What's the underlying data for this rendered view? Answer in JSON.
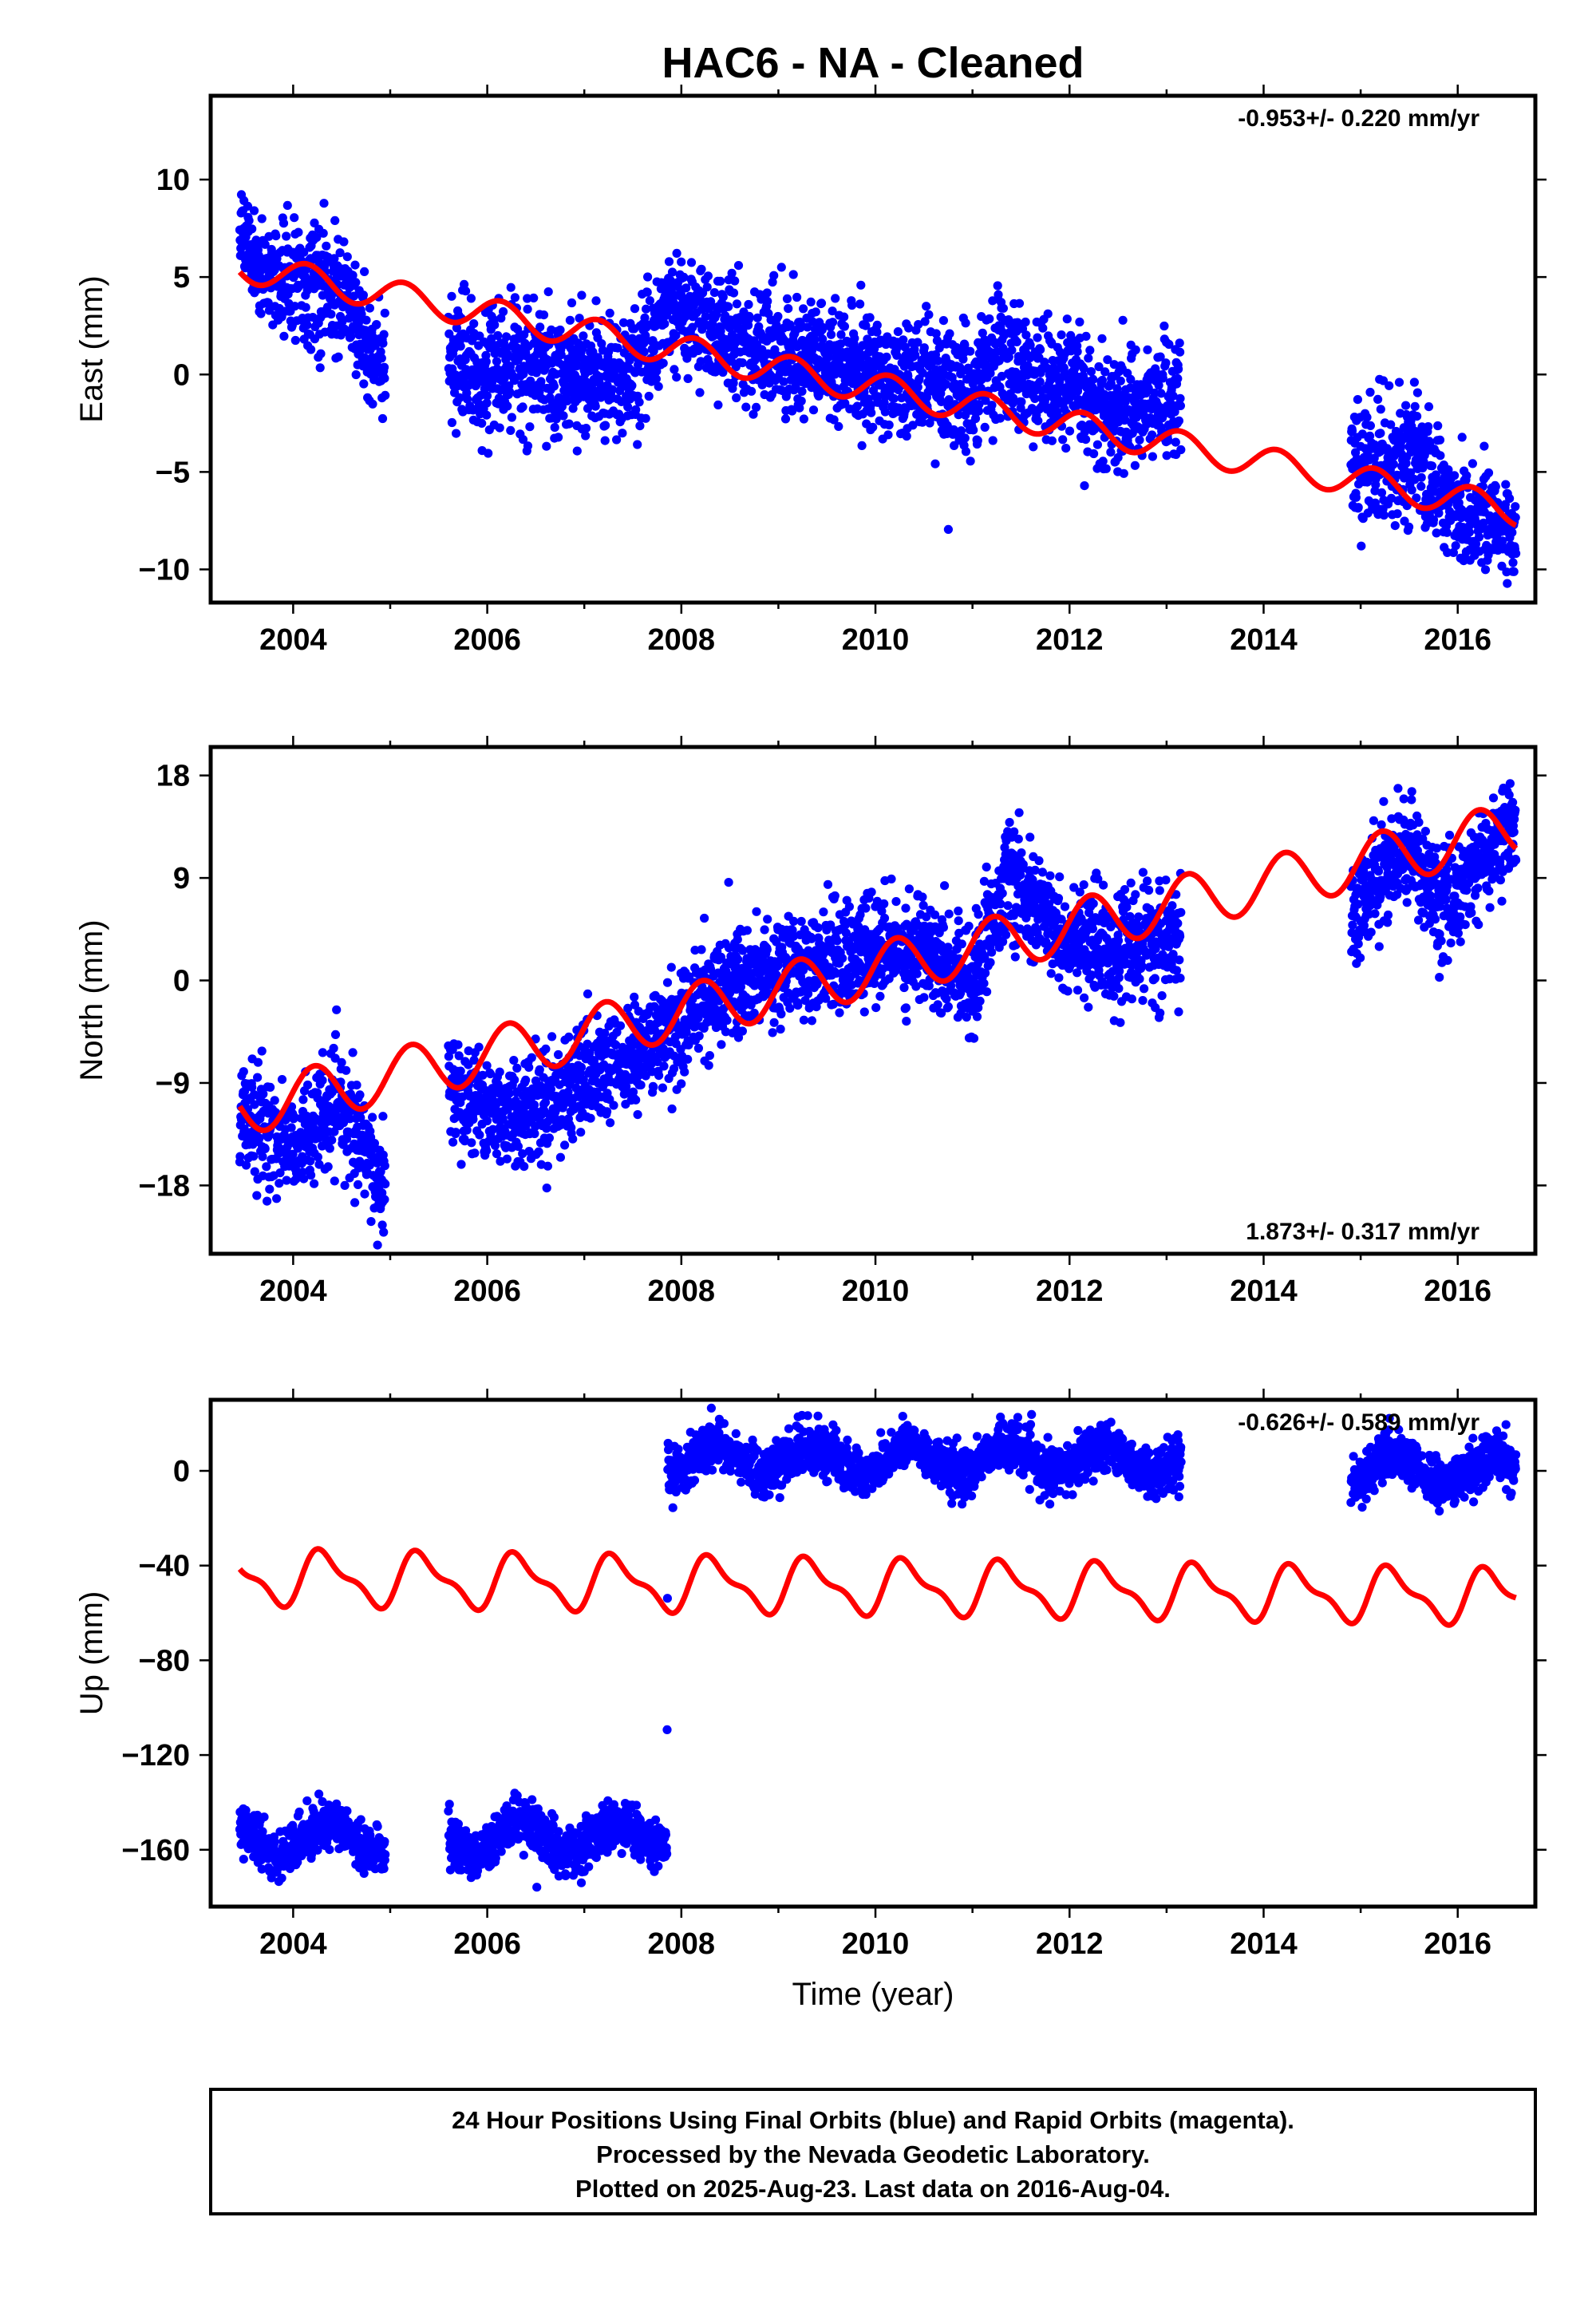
{
  "title": "HAC6  - NA - Cleaned",
  "xlabel": "Time (year)",
  "colors": {
    "data": "#0000ff",
    "model": "#ff0000",
    "frame": "#000000"
  },
  "footer": {
    "line1": "24 Hour Positions Using Final Orbits (blue) and Rapid Orbits (magenta).",
    "line2": "Processed by the Nevada Geodetic Laboratory.",
    "line3": "Plotted on 2025-Aug-23. Last data on 2016-Aug-04."
  },
  "chart_data": [
    {
      "type": "scatter",
      "panel": "east",
      "ylabel": "East (mm)",
      "rate_text": "-0.953+/- 0.220 mm/yr",
      "rate_position": "top-right",
      "xlim": [
        2003.15,
        2016.8
      ],
      "ylim": [
        -11.7,
        14.3
      ],
      "xticks": [
        2004,
        2006,
        2008,
        2010,
        2012,
        2014,
        2016
      ],
      "yticks": [
        10,
        5,
        0,
        -5,
        -10
      ],
      "ytick_labels": [
        "10",
        "5",
        "0",
        "−5",
        "−10"
      ],
      "data_segments": [
        [
          2003.45,
          2004.95
        ],
        [
          2005.6,
          2013.15
        ],
        [
          2014.9,
          2016.6
        ]
      ],
      "data_trend": [
        [
          2003.45,
          7.0
        ],
        [
          2003.8,
          5.0
        ],
        [
          2004.5,
          4.0
        ],
        [
          2004.95,
          0.0
        ],
        [
          2005.6,
          0.5
        ],
        [
          2007.5,
          -0.3
        ],
        [
          2007.85,
          3.5
        ],
        [
          2008.5,
          2.0
        ],
        [
          2010.0,
          0.0
        ],
        [
          2011.0,
          -1.0
        ],
        [
          2011.2,
          1.0
        ],
        [
          2012.5,
          -2.0
        ],
        [
          2013.15,
          -1.0
        ],
        [
          2014.9,
          -5.0
        ],
        [
          2015.5,
          -4.0
        ],
        [
          2016.0,
          -7.0
        ],
        [
          2016.6,
          -8.0
        ]
      ],
      "data_scatter": 1.5,
      "model": {
        "trend_at_2003_5": 5.5,
        "rate": -0.953,
        "annual_cos": 0.5,
        "annual_sin": 0.6,
        "semi_cos": 0.0,
        "semi_sin": 0.0
      },
      "series": [
        {
          "name": "24 Hour Positions Using Final Orbits (blue)",
          "color": "#0000ff"
        },
        {
          "color": "#ff0000"
        }
      ]
    },
    {
      "type": "scatter",
      "panel": "north",
      "ylabel": "North (mm)",
      "rate_text": "1.873+/- 0.317 mm/yr",
      "rate_position": "bottom-right",
      "xlim": [
        2003.15,
        2016.8
      ],
      "ylim": [
        -24.0,
        20.5
      ],
      "xticks": [
        2004,
        2006,
        2008,
        2010,
        2012,
        2014,
        2016
      ],
      "yticks": [
        18,
        9,
        0,
        -9,
        -18
      ],
      "ytick_labels": [
        "18",
        "9",
        "0",
        "−9",
        "−18"
      ],
      "data_segments": [
        [
          2003.45,
          2004.95
        ],
        [
          2005.6,
          2013.15
        ],
        [
          2014.9,
          2016.6
        ]
      ],
      "data_trend": [
        [
          2003.45,
          -12.0
        ],
        [
          2004.0,
          -14.5
        ],
        [
          2004.5,
          -11.0
        ],
        [
          2004.9,
          -18.0
        ],
        [
          2005.6,
          -9.0
        ],
        [
          2006.2,
          -12.0
        ],
        [
          2007.5,
          -7.0
        ],
        [
          2008.5,
          0.0
        ],
        [
          2009.5,
          2.0
        ],
        [
          2010.5,
          3.0
        ],
        [
          2011.0,
          0.0
        ],
        [
          2011.35,
          9.0
        ],
        [
          2012.0,
          3.0
        ],
        [
          2013.15,
          3.0
        ],
        [
          2014.9,
          6.0
        ],
        [
          2015.5,
          12.0
        ],
        [
          2015.8,
          6.0
        ],
        [
          2016.6,
          14.0
        ]
      ],
      "data_scatter": 2.3,
      "model": {
        "trend_at_2003_5": -11.2,
        "rate": 1.873,
        "annual_cos": 0.5,
        "annual_sin": 2.3,
        "semi_cos": 0.0,
        "semi_sin": 0.0
      },
      "series": [
        {
          "name": "24 Hour Positions Using Final Orbits (blue)",
          "color": "#0000ff"
        },
        {
          "color": "#ff0000"
        }
      ]
    },
    {
      "type": "scatter",
      "panel": "up",
      "ylabel": "Up (mm)",
      "rate_text": "-0.626+/- 0.589 mm/yr",
      "rate_position": "top-right",
      "xlim": [
        2003.15,
        2016.8
      ],
      "ylim": [
        -184,
        30
      ],
      "xticks": [
        2004,
        2006,
        2008,
        2010,
        2012,
        2014,
        2016
      ],
      "yticks": [
        0,
        -40,
        -80,
        -120,
        -160
      ],
      "ytick_labels": [
        "0",
        "−40",
        "−80",
        "−120",
        "−160"
      ],
      "data_segments": [
        [
          2003.45,
          2004.95
        ],
        [
          2005.6,
          2007.85
        ],
        [
          2007.85,
          2013.15
        ],
        [
          2014.9,
          2016.6
        ]
      ],
      "data_trend": [
        [
          2003.45,
          -155.0
        ],
        [
          2007.85,
          -155.0
        ],
        [
          2007.86,
          5.0
        ],
        [
          2013.15,
          5.0
        ],
        [
          2014.9,
          0.0
        ],
        [
          2016.6,
          0.0
        ]
      ],
      "data_annual": 6.0,
      "data_scatter": 5.0,
      "model": {
        "trend_at_2003_5": -45.0,
        "rate": -0.626,
        "annual_cos": -5.0,
        "annual_sin": 9.0,
        "semi_cos": -3.5,
        "semi_sin": 2.0
      },
      "series": [
        {
          "name": "24 Hour Positions Using Final Orbits (blue)",
          "color": "#0000ff"
        },
        {
          "color": "#ff0000"
        }
      ]
    }
  ]
}
